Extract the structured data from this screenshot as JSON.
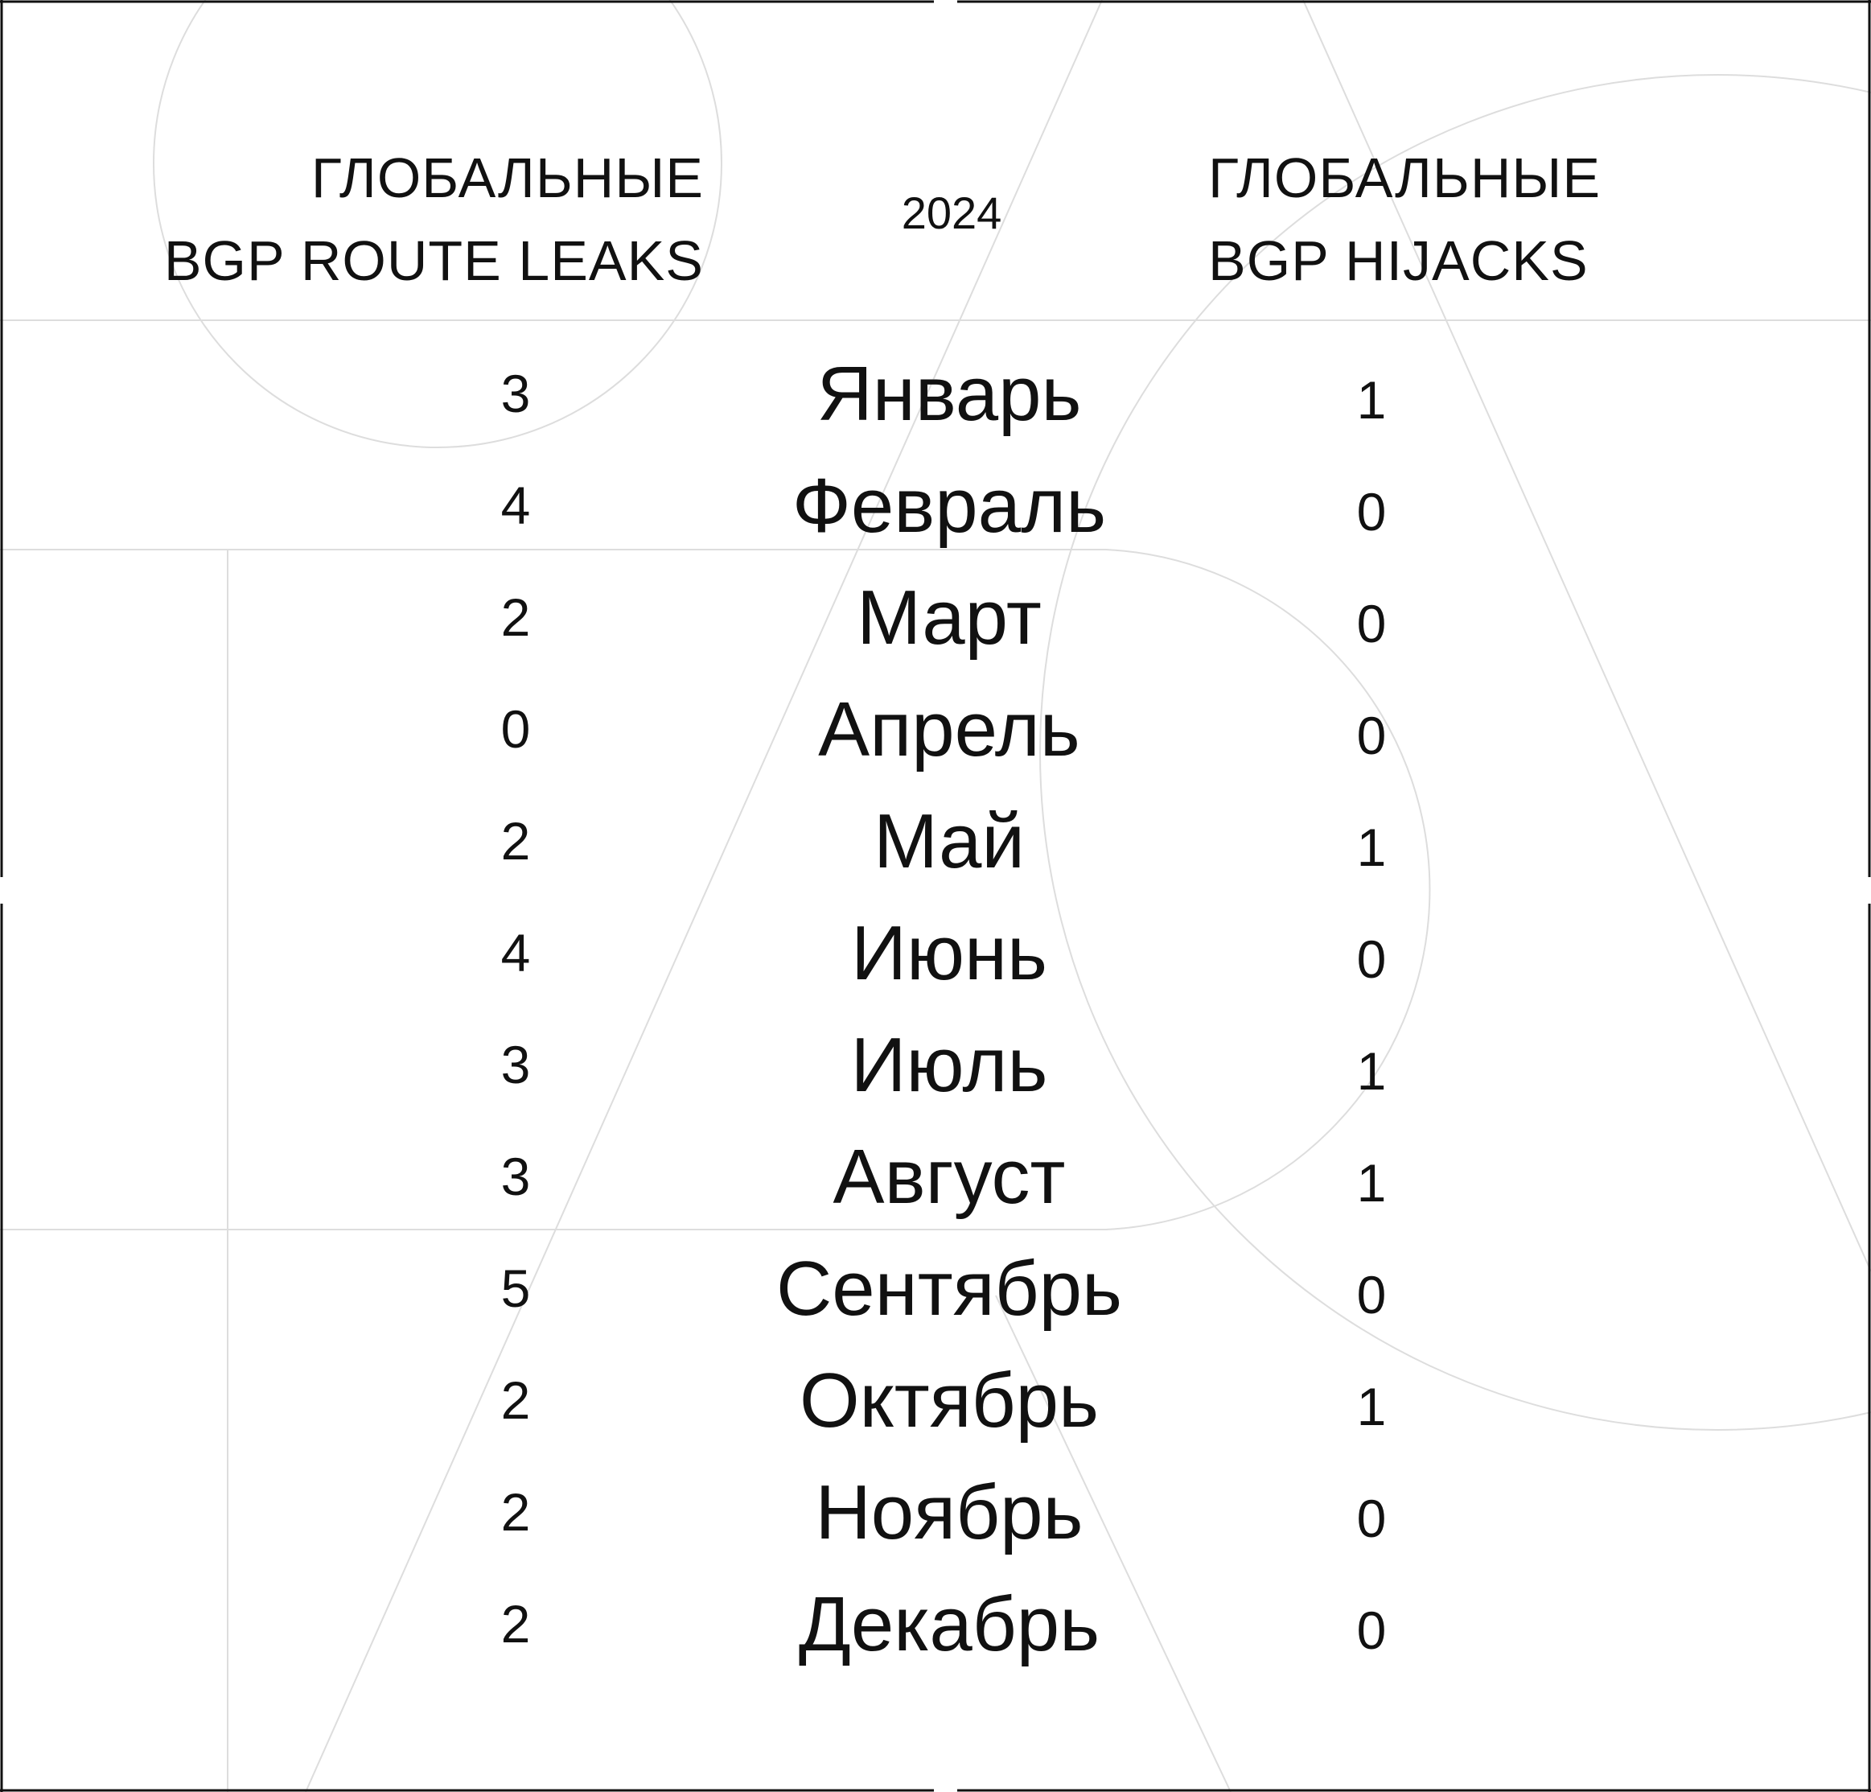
{
  "headers": {
    "left": [
      "ГЛОБАЛЬНЫЕ",
      "BGP ROUTE LEAKS"
    ],
    "center": "2024",
    "right": [
      "ГЛОБАЛЬНЫЕ",
      "BGP HIJACKS"
    ]
  },
  "colors": {
    "text": "#111111",
    "guides": "#dddddd",
    "frame": "#111111"
  },
  "chart_data": {
    "type": "table",
    "title": "2024",
    "columns": [
      "ГЛОБАЛЬНЫЕ BGP ROUTE LEAKS",
      "",
      "ГЛОБАЛЬНЫЕ BGP HIJACKS"
    ],
    "rows": [
      {
        "month": "Январь",
        "leaks": "3",
        "hijacks": "1"
      },
      {
        "month": "Февраль",
        "leaks": "4",
        "hijacks": "0"
      },
      {
        "month": "Март",
        "leaks": "2",
        "hijacks": "0"
      },
      {
        "month": "Апрель",
        "leaks": "0",
        "hijacks": "0"
      },
      {
        "month": "Май",
        "leaks": "2",
        "hijacks": "1"
      },
      {
        "month": "Июнь",
        "leaks": "4",
        "hijacks": "0"
      },
      {
        "month": "Июль",
        "leaks": "3",
        "hijacks": "1"
      },
      {
        "month": "Август",
        "leaks": "3",
        "hijacks": "1"
      },
      {
        "month": "Сентябрь",
        "leaks": "5",
        "hijacks": "0"
      },
      {
        "month": "Октябрь",
        "leaks": "2",
        "hijacks": "1"
      },
      {
        "month": "Ноябрь",
        "leaks": "2",
        "hijacks": "0"
      },
      {
        "month": "Декабрь",
        "leaks": "2",
        "hijacks": "0"
      }
    ]
  }
}
